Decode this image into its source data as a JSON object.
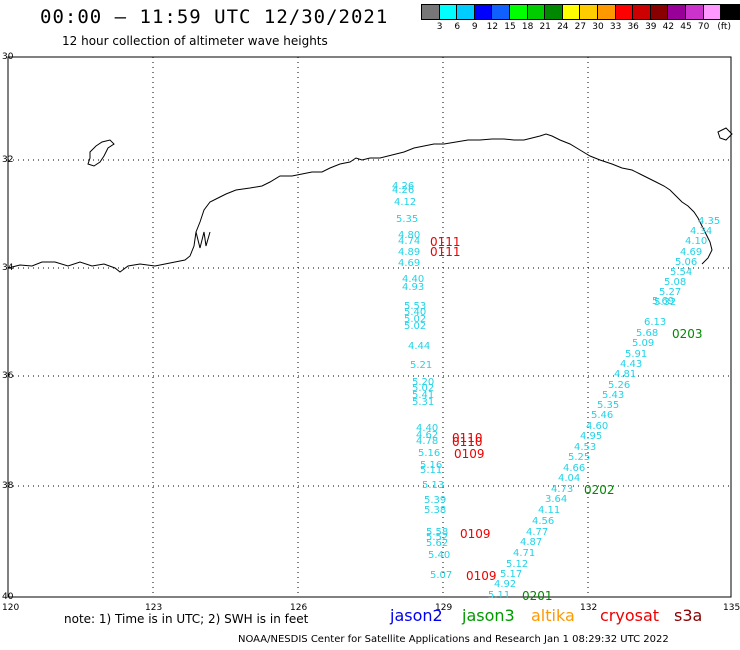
{
  "header": {
    "title": "00:00 – 11:59 UTC 12/30/2021",
    "subtitle": "12 hour collection of altimeter wave heights"
  },
  "legend": {
    "colors": [
      "#777777",
      "#00ffff",
      "#00ccff",
      "#0000ff",
      "#1060ff",
      "#00ff00",
      "#00cc00",
      "#008800",
      "#ffff00",
      "#ffcc00",
      "#ff9900",
      "#ff0000",
      "#cc0000",
      "#880000",
      "#990099",
      "#cc33cc",
      "#ff99ff",
      "#000000"
    ],
    "labels": [
      "3",
      "6",
      "9",
      "12",
      "15",
      "18",
      "21",
      "24",
      "27",
      "30",
      "33",
      "36",
      "39",
      "42",
      "45",
      "70",
      "(ft)"
    ]
  },
  "axes": {
    "lat_labels": [
      "30",
      "32",
      "34",
      "36",
      "38",
      "40"
    ],
    "lon_labels": [
      "120",
      "123",
      "126",
      "129",
      "132",
      "135"
    ]
  },
  "tracks": {
    "wave_heights": [
      [
        "4.26",
        "cy"
      ],
      [
        "4.26",
        "cy"
      ],
      [
        "4.12",
        "cy"
      ],
      [
        "5.35",
        "cy"
      ],
      [
        "4.80",
        "cy"
      ],
      [
        "4.74",
        "cy"
      ],
      [
        "4.89",
        "cy"
      ],
      [
        "4.69",
        "cy"
      ],
      [
        "4.40",
        "cy"
      ],
      [
        "4.93",
        "cy"
      ],
      [
        "5.53",
        "cy"
      ],
      [
        "5.40",
        "cy"
      ],
      [
        "5.02",
        "cy"
      ],
      [
        "5.02",
        "cy"
      ],
      [
        "4.44",
        "cy"
      ],
      [
        "5.21",
        "cy"
      ],
      [
        "5.20",
        "cy"
      ],
      [
        "5.02",
        "cy"
      ],
      [
        "5.41",
        "cy"
      ],
      [
        "5.31",
        "cy"
      ],
      [
        "4.40",
        "cy"
      ],
      [
        "4.62",
        "cy"
      ],
      [
        "4.78",
        "cy"
      ],
      [
        "5.16",
        "cy"
      ],
      [
        "5.16",
        "cy"
      ],
      [
        "5.11",
        "cy"
      ],
      [
        "5.13",
        "cy"
      ],
      [
        "5.39",
        "cy"
      ],
      [
        "5.38",
        "cy"
      ],
      [
        "5.58",
        "cy"
      ],
      [
        "5.52",
        "cy"
      ],
      [
        "5.62",
        "cy"
      ],
      [
        "5.40",
        "cy"
      ],
      [
        "5.07",
        "cy"
      ],
      [
        "4.92",
        "cy"
      ],
      [
        "5.11",
        "cy"
      ],
      [
        "5.17",
        "cy"
      ],
      [
        "5.12",
        "cy"
      ],
      [
        "4.71",
        "cy"
      ],
      [
        "4.87",
        "cy"
      ],
      [
        "4.77",
        "cy"
      ],
      [
        "4.56",
        "cy"
      ],
      [
        "4.11",
        "cy"
      ],
      [
        "3.64",
        "cy"
      ],
      [
        "4.73",
        "cy"
      ],
      [
        "4.04",
        "cy"
      ],
      [
        "4.66",
        "cy"
      ],
      [
        "5.25",
        "cy"
      ],
      [
        "4.53",
        "cy"
      ],
      [
        "4.95",
        "cy"
      ],
      [
        "4.60",
        "cy"
      ],
      [
        "5.46",
        "cy"
      ],
      [
        "5.35",
        "cy"
      ],
      [
        "5.43",
        "cy"
      ],
      [
        "5.26",
        "cy"
      ],
      [
        "4.81",
        "cy"
      ],
      [
        "4.43",
        "cy"
      ],
      [
        "5.91",
        "cy"
      ],
      [
        "5.09",
        "cy"
      ],
      [
        "5.68",
        "cy"
      ],
      [
        "6.13",
        "cy"
      ],
      [
        "5.69",
        "cy"
      ],
      [
        "5.32",
        "cy"
      ],
      [
        "5.27",
        "cy"
      ],
      [
        "5.08",
        "cy"
      ],
      [
        "5.54",
        "cy"
      ],
      [
        "5.06",
        "cy"
      ],
      [
        "4.69",
        "cy"
      ],
      [
        "4.10",
        "cy"
      ],
      [
        "4.34",
        "cy"
      ],
      [
        "4.35",
        "cy"
      ]
    ],
    "time_labels": [
      [
        "0111",
        "red"
      ],
      [
        "0111",
        "red"
      ],
      [
        "0110",
        "red"
      ],
      [
        "0110",
        "red"
      ],
      [
        "0109",
        "red"
      ],
      [
        "0109",
        "red"
      ],
      [
        "0109",
        "red"
      ],
      [
        "0201",
        "green"
      ],
      [
        "0202",
        "green"
      ],
      [
        "0203",
        "green"
      ]
    ]
  },
  "note": "note: 1) Time is in UTC; 2) SWH is in feet",
  "satellites": [
    {
      "name": "jason2",
      "color": "#0000ee"
    },
    {
      "name": "jason3",
      "color": "#009900"
    },
    {
      "name": "altika",
      "color": "#ff9900"
    },
    {
      "name": "cryosat",
      "color": "#ee0000"
    },
    {
      "name": "s3a",
      "color": "#880000"
    }
  ],
  "footer": "NOAA/NESDIS Center for Satellite Applications and Research    Jan  1 08:29:32 UTC 2022"
}
